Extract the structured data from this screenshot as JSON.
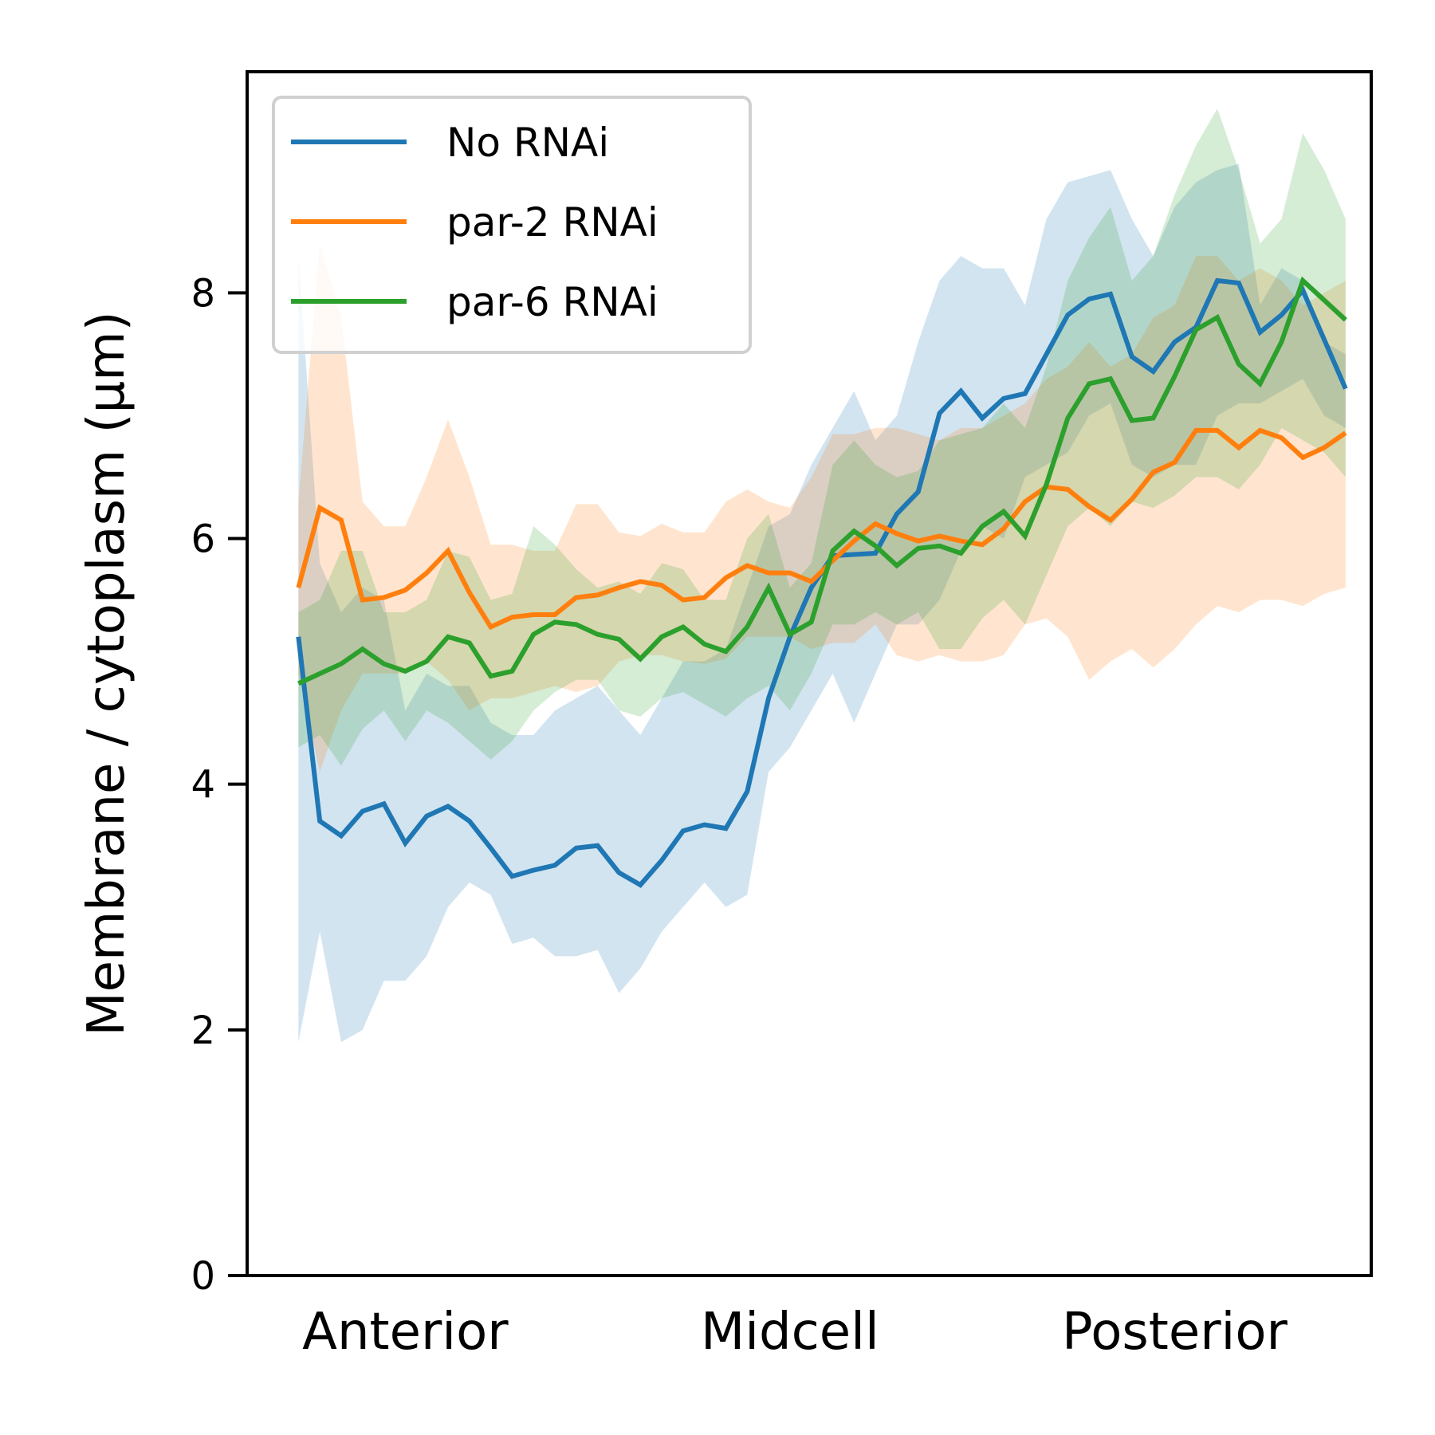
{
  "chart_data": {
    "type": "line",
    "ylabel": "Membrane / cytoplasm (μm)",
    "xlabel": "",
    "title": "",
    "ylim": [
      0,
      9.8
    ],
    "yticks": [
      0,
      2,
      4,
      6,
      8
    ],
    "xlim": [
      -2.4,
      50.2
    ],
    "x_categories": [
      {
        "label": "Anterior",
        "x": 5
      },
      {
        "label": "Midcell",
        "x": 23
      },
      {
        "label": "Posterior",
        "x": 41
      }
    ],
    "legend_position": "upper-left",
    "grid": false,
    "x": [
      0,
      1,
      2,
      3,
      4,
      5,
      6,
      7,
      8,
      9,
      10,
      11,
      12,
      13,
      14,
      15,
      16,
      17,
      18,
      19,
      20,
      21,
      22,
      23,
      24,
      25,
      26,
      27,
      28,
      29,
      30,
      31,
      32,
      33,
      34,
      35,
      36,
      37,
      38,
      39,
      40,
      41,
      42,
      43,
      44,
      45,
      46,
      47,
      48,
      49
    ],
    "series": [
      {
        "name": "No RNAi",
        "color": "#1f77b4",
        "values": [
          5.2,
          3.7,
          3.58,
          3.78,
          3.84,
          3.52,
          3.74,
          3.82,
          3.7,
          3.48,
          3.25,
          3.3,
          3.34,
          3.48,
          3.5,
          3.28,
          3.18,
          3.38,
          3.62,
          3.67,
          3.64,
          3.94,
          4.7,
          5.2,
          5.6,
          5.86,
          5.87,
          5.88,
          6.2,
          6.38,
          7.02,
          7.2,
          6.98,
          7.14,
          7.18,
          7.5,
          7.82,
          7.95,
          7.99,
          7.48,
          7.36,
          7.6,
          7.72,
          8.1,
          8.08,
          7.68,
          7.82,
          8.02,
          7.62,
          7.22
        ],
        "upper": [
          8.3,
          5.8,
          5.4,
          5.6,
          5.5,
          4.6,
          4.9,
          4.8,
          4.8,
          4.5,
          4.4,
          4.4,
          4.6,
          4.7,
          4.8,
          4.6,
          4.4,
          4.7,
          5.0,
          5.0,
          5.1,
          5.6,
          6.1,
          6.2,
          6.6,
          6.9,
          7.2,
          6.8,
          7.0,
          7.6,
          8.1,
          8.3,
          8.2,
          8.2,
          7.9,
          8.6,
          8.9,
          8.95,
          9.0,
          8.6,
          8.3,
          8.7,
          8.9,
          9.0,
          9.05,
          7.9,
          8.2,
          8.1,
          7.6,
          7.5
        ],
        "lower": [
          1.9,
          2.8,
          1.9,
          2.0,
          2.4,
          2.4,
          2.6,
          3.0,
          3.2,
          3.1,
          2.7,
          2.75,
          2.6,
          2.6,
          2.65,
          2.3,
          2.5,
          2.8,
          3.0,
          3.2,
          3.0,
          3.1,
          4.1,
          4.3,
          4.6,
          4.9,
          4.5,
          4.9,
          5.3,
          5.3,
          5.5,
          5.9,
          6.1,
          6.0,
          6.5,
          6.6,
          6.7,
          7.0,
          7.1,
          6.6,
          6.5,
          6.6,
          6.6,
          7.0,
          7.1,
          7.1,
          7.2,
          7.3,
          7.0,
          6.9
        ]
      },
      {
        "name": "par-2 RNAi",
        "color": "#ff7f0e",
        "values": [
          5.6,
          6.25,
          6.15,
          5.5,
          5.52,
          5.58,
          5.72,
          5.9,
          5.56,
          5.28,
          5.36,
          5.38,
          5.38,
          5.52,
          5.54,
          5.6,
          5.65,
          5.62,
          5.5,
          5.52,
          5.68,
          5.78,
          5.72,
          5.72,
          5.65,
          5.82,
          5.98,
          6.12,
          6.04,
          5.98,
          6.02,
          5.98,
          5.95,
          6.08,
          6.3,
          6.42,
          6.4,
          6.26,
          6.15,
          6.32,
          6.54,
          6.62,
          6.88,
          6.88,
          6.74,
          6.88,
          6.82,
          6.66,
          6.74,
          6.86
        ],
        "upper": [
          6.3,
          8.4,
          7.8,
          6.3,
          6.1,
          6.1,
          6.5,
          6.97,
          6.5,
          5.95,
          5.95,
          5.9,
          5.9,
          6.28,
          6.28,
          6.05,
          6.02,
          6.12,
          6.05,
          6.05,
          6.3,
          6.4,
          6.3,
          6.25,
          6.5,
          6.85,
          6.85,
          6.9,
          6.9,
          6.85,
          6.8,
          6.9,
          6.9,
          7.0,
          7.1,
          7.3,
          7.4,
          7.6,
          7.4,
          7.5,
          7.8,
          7.9,
          8.3,
          8.3,
          8.1,
          8.2,
          8.1,
          7.9,
          8.0,
          8.1
        ],
        "lower": [
          4.9,
          4.1,
          4.6,
          4.9,
          4.9,
          4.9,
          5.0,
          4.85,
          4.6,
          4.7,
          4.7,
          4.75,
          4.8,
          4.75,
          4.8,
          5.0,
          5.05,
          5.05,
          5.0,
          4.98,
          5.02,
          5.2,
          5.2,
          5.2,
          5.1,
          5.15,
          5.15,
          5.3,
          5.05,
          5.0,
          5.05,
          5.0,
          5.0,
          5.05,
          5.3,
          5.35,
          5.2,
          4.85,
          5.0,
          5.1,
          4.95,
          5.1,
          5.3,
          5.45,
          5.4,
          5.5,
          5.5,
          5.45,
          5.55,
          5.6
        ]
      },
      {
        "name": "par-6 RNAi",
        "color": "#2ca02c",
        "values": [
          4.82,
          4.9,
          4.98,
          5.1,
          4.98,
          4.92,
          5.0,
          5.2,
          5.15,
          4.88,
          4.92,
          5.22,
          5.32,
          5.3,
          5.22,
          5.18,
          5.02,
          5.2,
          5.28,
          5.14,
          5.08,
          5.28,
          5.6,
          5.22,
          5.32,
          5.9,
          6.06,
          5.94,
          5.78,
          5.92,
          5.94,
          5.88,
          6.1,
          6.22,
          6.02,
          6.44,
          6.98,
          7.26,
          7.3,
          6.96,
          6.98,
          7.32,
          7.7,
          7.8,
          7.42,
          7.26,
          7.6,
          8.1,
          7.94,
          7.78
        ],
        "upper": [
          5.4,
          5.5,
          5.9,
          5.9,
          5.4,
          5.4,
          5.5,
          5.9,
          5.85,
          5.5,
          5.55,
          6.1,
          5.95,
          5.75,
          5.6,
          5.65,
          5.55,
          5.8,
          5.75,
          5.5,
          5.5,
          6.0,
          6.2,
          5.6,
          5.8,
          6.6,
          6.8,
          6.6,
          6.5,
          6.55,
          6.8,
          6.85,
          6.9,
          7.1,
          6.9,
          7.4,
          8.1,
          8.45,
          8.7,
          8.1,
          8.3,
          8.8,
          9.2,
          9.5,
          9.0,
          8.4,
          8.6,
          9.3,
          9.0,
          8.6
        ],
        "lower": [
          4.3,
          4.4,
          4.15,
          4.45,
          4.6,
          4.35,
          4.6,
          4.5,
          4.35,
          4.2,
          4.35,
          4.6,
          4.75,
          4.85,
          4.85,
          4.6,
          4.55,
          4.7,
          4.75,
          4.65,
          4.55,
          4.7,
          4.8,
          4.6,
          4.9,
          5.3,
          5.3,
          5.4,
          5.3,
          5.4,
          5.1,
          5.1,
          5.35,
          5.5,
          5.3,
          5.7,
          6.1,
          6.25,
          6.1,
          6.3,
          6.25,
          6.35,
          6.5,
          6.5,
          6.4,
          6.6,
          6.9,
          6.8,
          6.7,
          6.5
        ]
      }
    ]
  }
}
